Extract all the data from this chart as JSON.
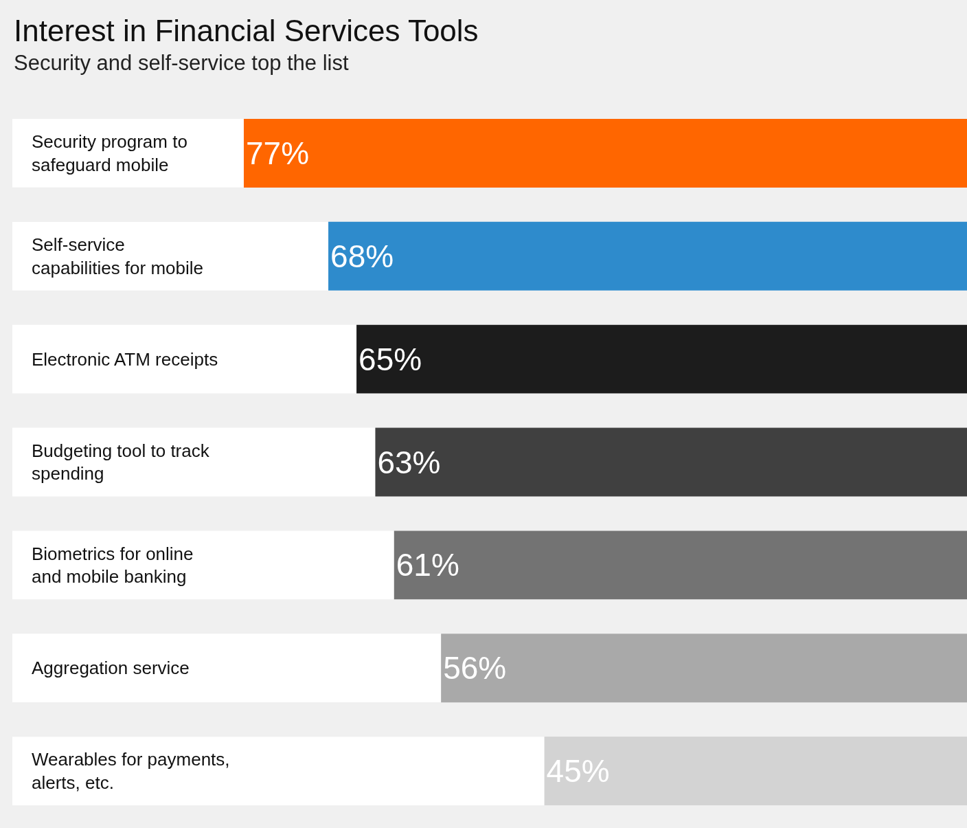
{
  "chart_data": {
    "type": "bar",
    "orientation": "horizontal",
    "title": "Interest in Financial Services Tools",
    "subtitle": "Security and self-service top the list",
    "categories": [
      "Security program to safeguard mobile",
      "Self-service capabilities for mobile",
      "Electronic ATM receipts",
      "Budgeting tool to track spending",
      "Biometrics for online and mobile banking",
      "Aggregation service",
      "Wearables for payments, alerts, etc."
    ],
    "values": [
      77,
      68,
      65,
      63,
      61,
      56,
      45
    ],
    "value_labels": [
      "77%",
      "68%",
      "65%",
      "63%",
      "61%",
      "56%",
      "45%"
    ],
    "colors": [
      "#ff6600",
      "#2e8bcc",
      "#1c1c1c",
      "#404040",
      "#737373",
      "#a9a9a9",
      "#d3d3d3"
    ],
    "grid": false,
    "legend": false
  }
}
